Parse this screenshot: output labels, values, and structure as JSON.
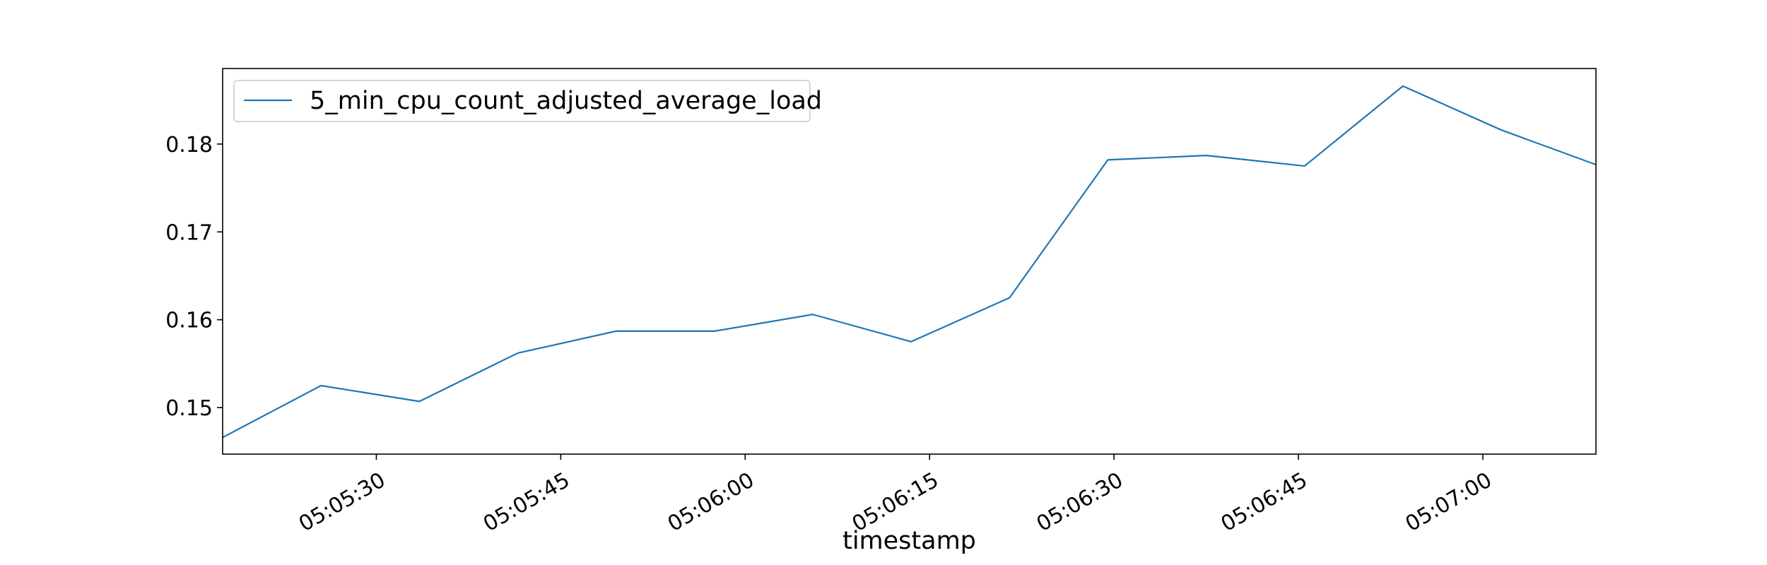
{
  "chart_data": {
    "type": "line",
    "xlabel": "timestamp",
    "ylabel": "",
    "x_tick_labels": [
      "05:05:30",
      "05:05:45",
      "05:06:00",
      "05:06:15",
      "05:06:30",
      "05:06:45",
      "05:07:00"
    ],
    "x_ticks_seconds": [
      30,
      45,
      60,
      75,
      90,
      105,
      120
    ],
    "y_tick_labels": [
      "0.15",
      "0.16",
      "0.17",
      "0.18"
    ],
    "y_ticks": [
      0.15,
      0.16,
      0.17,
      0.18
    ],
    "xlim": [
      "05:05:17.5",
      "05:07:09.2"
    ],
    "ylim": [
      0.1447,
      0.1886
    ],
    "legend": {
      "position": "upper-left"
    },
    "grid": false,
    "series": [
      {
        "name": "5_min_cpu_count_adjusted_average_load",
        "color": "#1f77b4",
        "x": [
          "05:05:17.5",
          "05:05:25.5",
          "05:05:33.5",
          "05:05:41.5",
          "05:05:49.5",
          "05:05:57.5",
          "05:06:05.5",
          "05:06:13.5",
          "05:06:21.5",
          "05:06:29.5",
          "05:06:37.5",
          "05:06:45.5",
          "05:06:53.5",
          "05:07:01.5",
          "05:07:09.5"
        ],
        "y": [
          0.1466,
          0.1525,
          0.1507,
          0.1562,
          0.1587,
          0.1587,
          0.1606,
          0.1575,
          0.1625,
          0.1782,
          0.1787,
          0.1775,
          0.1866,
          0.1816,
          0.1775
        ]
      }
    ]
  }
}
